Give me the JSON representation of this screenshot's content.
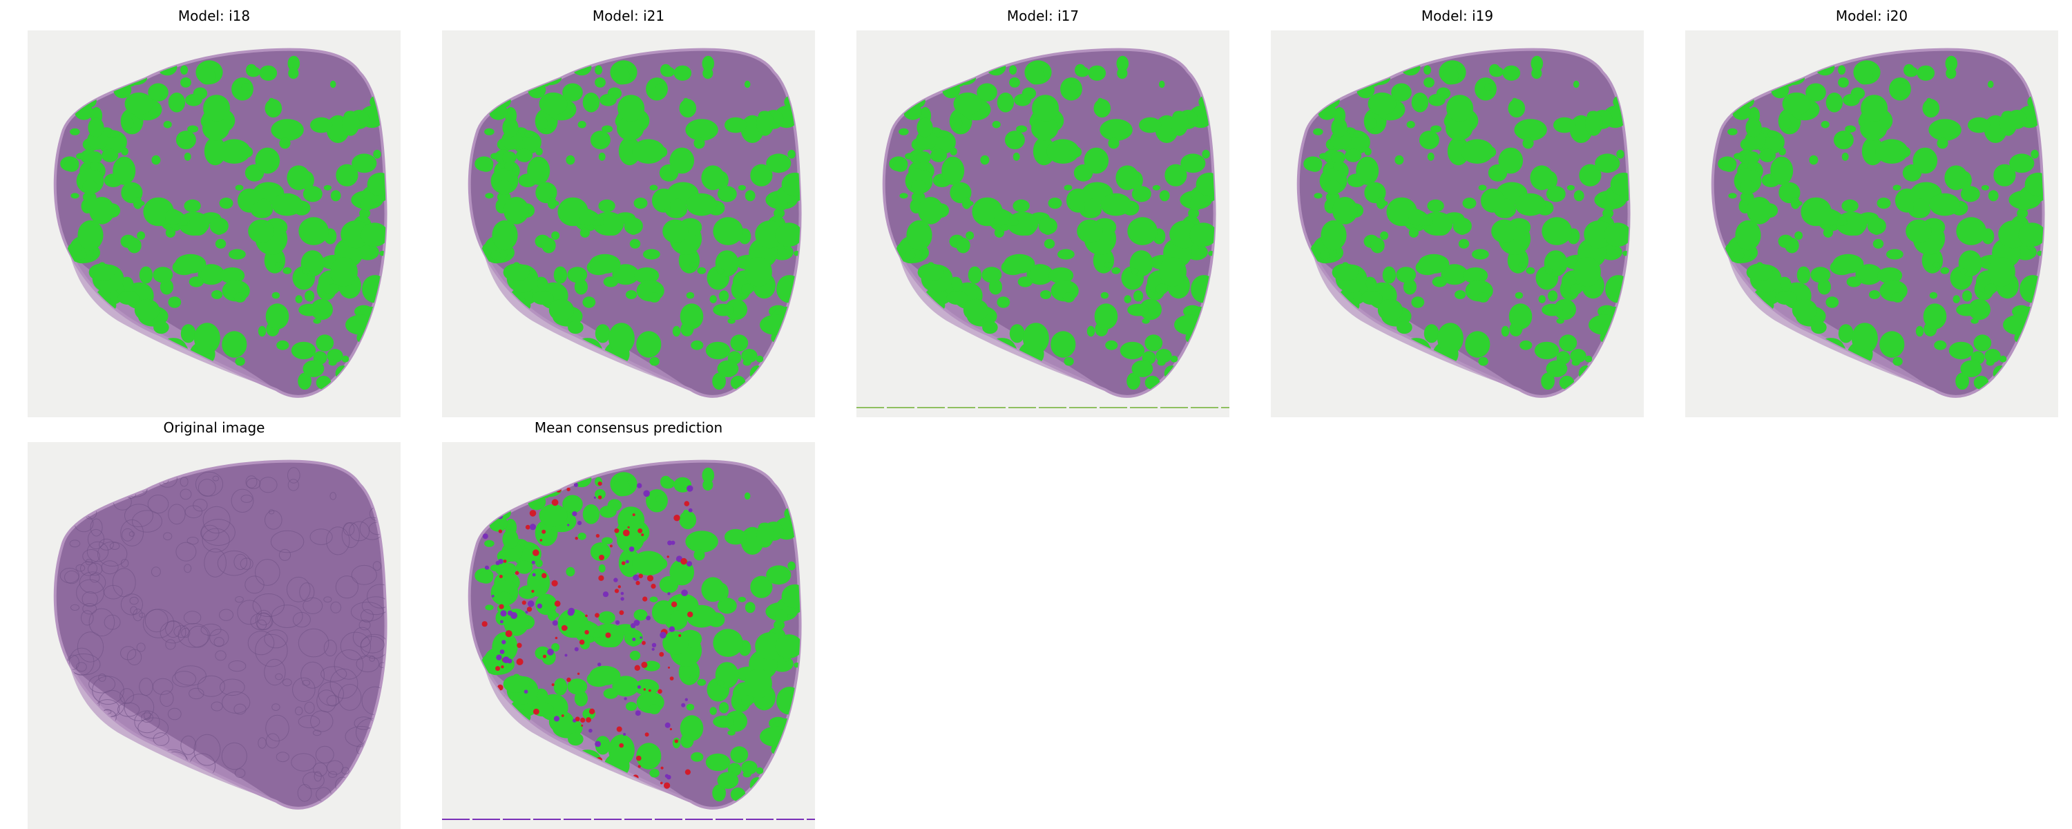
{
  "panels": [
    {
      "title": "Model: i18",
      "overlay": "green"
    },
    {
      "title": "Model: i21",
      "overlay": "green"
    },
    {
      "title": "Model: i17",
      "overlay": "green",
      "bottom_line": "green"
    },
    {
      "title": "Model: i19",
      "overlay": "green"
    },
    {
      "title": "Model: i20",
      "overlay": "green"
    },
    {
      "title": "Original image",
      "overlay": "none"
    },
    {
      "title": "Mean consensus prediction",
      "overlay": "consensus",
      "bottom_line": "purple"
    }
  ],
  "colors": {
    "background": "#f0f0ee",
    "tissue": "#8e6a9e",
    "tissue_light": "#b593c0",
    "prediction": "#2fd22f",
    "consensus_red": "#d21c2a",
    "consensus_purple": "#7a2fb8"
  }
}
